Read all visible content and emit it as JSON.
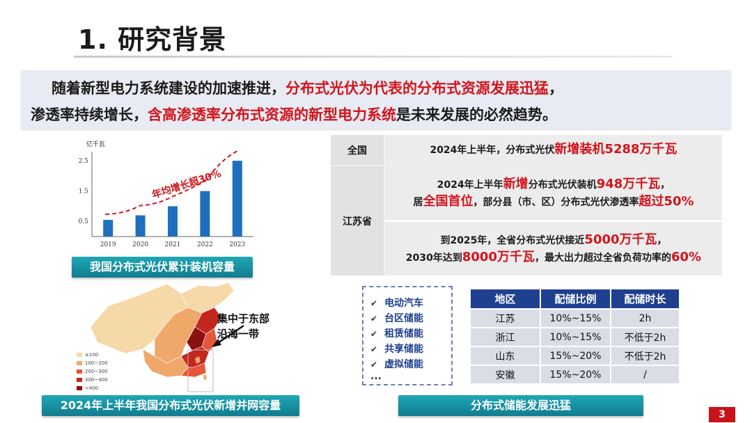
{
  "title": "1. 研究背景",
  "intro": {
    "line1": [
      {
        "text": "随着新型电力系统建设的加速推进，",
        "red": false
      },
      {
        "text": "分布式光伏为代表的分布式资源发展迅猛",
        "red": true
      },
      {
        "text": "，",
        "red": false
      }
    ],
    "line2": [
      {
        "text": "渗透率持续增长，",
        "red": false
      },
      {
        "text": "含高渗透率分布式资源的新型电力系统",
        "red": true
      },
      {
        "text": "是未来发展的必然趋势。",
        "red": false
      }
    ]
  },
  "chart_data": {
    "type": "bar",
    "categories": [
      "2019",
      "2020",
      "2021",
      "2022",
      "2023"
    ],
    "values": [
      0.55,
      0.7,
      1.0,
      1.5,
      2.5
    ],
    "ylabel": "亿千瓦",
    "yticks": [
      0.5,
      1.5,
      2.5
    ],
    "ylim": [
      0,
      2.8
    ],
    "annotation": "年均增长超30%",
    "bar_color": "#1f6fbf",
    "trend_color": "#d2141b"
  },
  "chart_caption": "我国分布式光伏累计装机容量",
  "map": {
    "note_line1": "集中于东部",
    "note_line2": "沿海一带",
    "legend": [
      {
        "label": "≤100",
        "color": "#f5d9a8"
      },
      {
        "label": "100~200",
        "color": "#f0a76a"
      },
      {
        "label": "200~300",
        "color": "#e4573b"
      },
      {
        "label": "300~400",
        "color": "#c3261f"
      },
      {
        "label": ">400",
        "color": "#8c1010"
      }
    ],
    "caption": "2024年上半年我国分布式光伏新增并网容量"
  },
  "info_table": {
    "row1_label": "全国",
    "row1_a": "2024年上半年，分布式光伏",
    "row1_b": "新增装机5288万千瓦",
    "row2_label": "江苏省",
    "row2_l1_a": "2024年上半年",
    "row2_l1_b": "新增",
    "row2_l1_c": "分布式光伏装机",
    "row2_l1_d": "948万千瓦",
    "row2_l1_e": "，",
    "row2_l2_a": "居",
    "row2_l2_b": "全国首位",
    "row2_l2_c": "，部分县（市、区）分布式光伏渗透率",
    "row2_l2_d": "超过50%",
    "row3_l1_a": "到2025年，全省分布式光伏接近",
    "row3_l1_b": "5000万千瓦",
    "row3_l1_c": "，",
    "row3_l2_a": "2030年达到",
    "row3_l2_b": "8000万千瓦",
    "row3_l2_c": "，最大出力超过全省负荷功率的",
    "row3_l2_d": "60%"
  },
  "checklist": {
    "items": [
      "电动汽车",
      "台区储能",
      "租赁储能",
      "共享储能",
      "虚拟储能"
    ],
    "more": "..."
  },
  "storage_table": {
    "headers": [
      "地区",
      "配储比例",
      "配储时长"
    ],
    "rows": [
      [
        "江苏",
        "10%~15%",
        "2h"
      ],
      [
        "浙江",
        "10%~15%",
        "不低于2h"
      ],
      [
        "山东",
        "15%~20%",
        "不低于2h"
      ],
      [
        "安徽",
        "15%~20%",
        "/"
      ]
    ]
  },
  "storage_caption": "分布式储能发展迅猛",
  "page_number": "3"
}
